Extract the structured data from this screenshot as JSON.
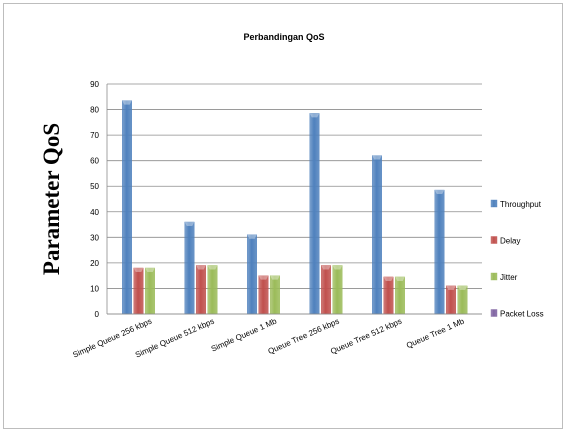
{
  "chart_data": {
    "type": "bar",
    "title": "Perbandingan QoS",
    "xlabel": "",
    "ylabel": "Parameter QoS",
    "ylim": [
      0,
      90
    ],
    "yticks": [
      0,
      10,
      20,
      30,
      40,
      50,
      60,
      70,
      80,
      90
    ],
    "categories": [
      "Simple Queue 256 kbps",
      "Simple Queue 512 kbps",
      "Simple Queue 1 Mb",
      "Queue Tree 256 kbps",
      "Queue Tree 512 kbps",
      "Queue Tree 1 Mb"
    ],
    "series": [
      {
        "name": "Throughput",
        "color": "#4f81bd",
        "values": [
          83.5,
          36,
          31,
          78.5,
          62,
          48.5
        ]
      },
      {
        "name": "Delay",
        "color": "#c0504d",
        "values": [
          18,
          19,
          15,
          19,
          14.5,
          11
        ]
      },
      {
        "name": "Jitter",
        "color": "#9bbb59",
        "values": [
          18,
          19,
          15,
          19,
          14.5,
          11
        ]
      },
      {
        "name": "Packet Loss",
        "color": "#8064a2",
        "values": [
          0,
          0,
          0,
          0,
          0,
          0
        ]
      }
    ],
    "grid": true,
    "legend": "right"
  }
}
